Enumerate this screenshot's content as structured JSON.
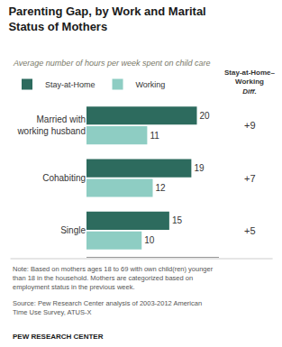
{
  "chart_data": {
    "type": "bar",
    "orientation": "horizontal",
    "title": "Parenting Gap, by Work and Marital\nStatus of Mothers",
    "subtitle": "Average number of hours per week spent on child care",
    "categories": [
      "Married with\nworking husband",
      "Cohabiting",
      "Single"
    ],
    "series": [
      {
        "name": "Stay-at-Home",
        "color": "#2d6b5e",
        "values": [
          20,
          19,
          15
        ]
      },
      {
        "name": "Working",
        "color": "#8ecdc3",
        "values": [
          11,
          12,
          10
        ]
      }
    ],
    "xlim": [
      0,
      24
    ],
    "grid": false,
    "legend": "top",
    "data_labels": true,
    "tick_labels": "y",
    "annotations": [
      {
        "text": "Stay-at-Home–\nWorking\nDiff."
      },
      {
        "text": "+9",
        "category": "Married with\nworking husband"
      },
      {
        "text": "+7",
        "category": "Cohabiting"
      },
      {
        "text": "+5",
        "category": "Single"
      },
      {
        "text": "Note: Based on mothers ages 18 to 69 with own child(ren) younger\nthan 18 in the household. Mothers are categorized based on\nemployment status in the previous week."
      },
      {
        "text": "Source: Pew Research Center analysis of 2003-2012 American\nTime Use Survey, ATUS-X"
      },
      {
        "text": "PEW RESEARCH CENTER"
      }
    ]
  }
}
